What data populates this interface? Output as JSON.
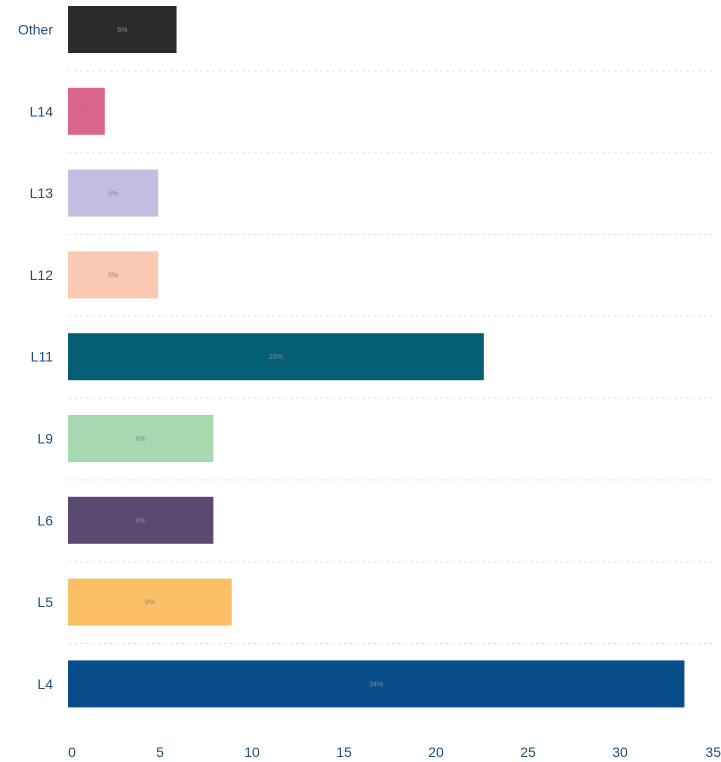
{
  "chart_data": {
    "type": "bar",
    "orientation": "horizontal",
    "categories": [
      "Other",
      "L14",
      "L13",
      "L12",
      "L11",
      "L9",
      "L6",
      "L5",
      "L4"
    ],
    "values": [
      5.9,
      2.0,
      4.9,
      4.9,
      22.6,
      7.9,
      7.9,
      8.9,
      33.5
    ],
    "data_labels": [
      "6%",
      "2%",
      "5%",
      "5%",
      "23%",
      "8%",
      "8%",
      "9%",
      "34%"
    ],
    "colors": [
      "#2b2b2b",
      "#d9658a",
      "#c4bde0",
      "#f9c9b3",
      "#045e74",
      "#a6d9b0",
      "#5b4a70",
      "#fbbf66",
      "#064d8a"
    ],
    "xlim": [
      0,
      35
    ],
    "x_ticks": [
      "0",
      "5",
      "10",
      "15",
      "20",
      "25",
      "30",
      "35"
    ],
    "grid": "horizontal dashed separators",
    "title": "",
    "xlabel": "",
    "ylabel": ""
  }
}
